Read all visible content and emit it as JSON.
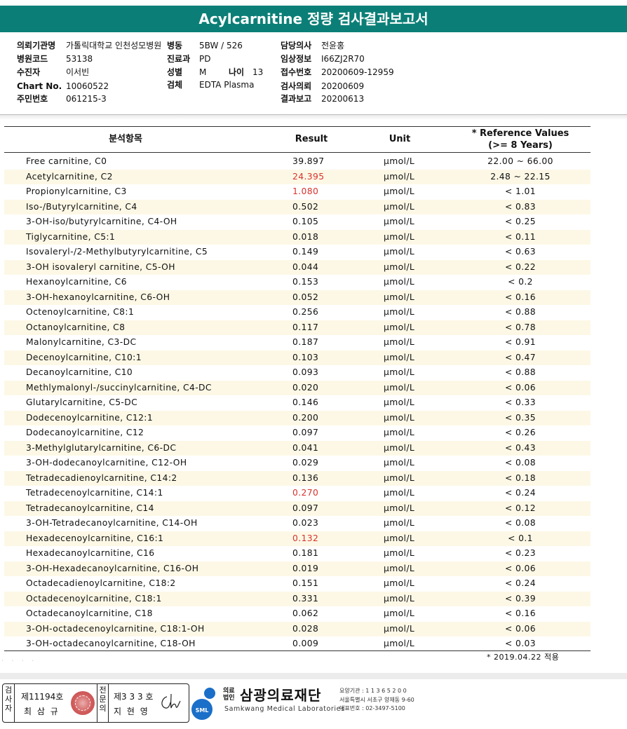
{
  "title": "Acylcarnitine 정량 검사결과보고서",
  "info": {
    "col1": [
      {
        "label": "의뢰기관명",
        "value": "가톨릭대학교 인천성모병원"
      },
      {
        "label": "병원코드",
        "value": "53138"
      },
      {
        "label": "수진자",
        "value": "이서빈"
      },
      {
        "label": "Chart No.",
        "value": "10060522"
      },
      {
        "label": "주민번호",
        "value": "061215-3"
      }
    ],
    "col2": [
      {
        "label": "병동",
        "value": "5BW / 526"
      },
      {
        "label": "진료과",
        "value": "PD"
      },
      {
        "label": "성별",
        "value": "M"
      },
      {
        "label": "검체",
        "value": "EDTA Plasma"
      }
    ],
    "age": {
      "label": "나이",
      "value": "13"
    },
    "col3": [
      {
        "label": "담당의사",
        "value": "전윤홍"
      },
      {
        "label": "임상정보",
        "value": "I66ZJ2R70"
      },
      {
        "label": "접수번호",
        "value": "20200609-12959"
      },
      {
        "label": "검사의뢰",
        "value": "20200609"
      },
      {
        "label": "결과보고",
        "value": "20200613"
      }
    ]
  },
  "table": {
    "headers": {
      "name": "분석항목",
      "result": "Result",
      "unit": "Unit",
      "ref_line1": "* Reference Values",
      "ref_line2": "(>= 8 Years)"
    },
    "rows": [
      {
        "name": "Free carnitine, C0",
        "result": "39.897",
        "unit": "μmol/L",
        "ref": "22.00 ~ 66.00",
        "flag": false
      },
      {
        "name": "Acetylcarnitine, C2",
        "result": "24.395",
        "unit": "μmol/L",
        "ref": "2.48 ~ 22.15",
        "flag": true
      },
      {
        "name": "Propionylcarnitine, C3",
        "result": "1.080",
        "unit": "μmol/L",
        "ref": "< 1.01",
        "flag": true
      },
      {
        "name": "Iso-/Butyrylcarnitine, C4",
        "result": "0.502",
        "unit": "μmol/L",
        "ref": "< 0.83",
        "flag": false
      },
      {
        "name": "3-OH-iso/butyrylcarnitine, C4-OH",
        "result": "0.105",
        "unit": "μmol/L",
        "ref": "< 0.25",
        "flag": false
      },
      {
        "name": "Tiglycarnitine, C5:1",
        "result": "0.018",
        "unit": "μmol/L",
        "ref": "< 0.11",
        "flag": false
      },
      {
        "name": "Isovaleryl-/2-Methylbutyrylcarnitine, C5",
        "result": "0.149",
        "unit": "μmol/L",
        "ref": "< 0.63",
        "flag": false
      },
      {
        "name": "3-OH isovaleryl carnitine, C5-OH",
        "result": "0.044",
        "unit": "μmol/L",
        "ref": "< 0.22",
        "flag": false
      },
      {
        "name": "Hexanoylcarnitine, C6",
        "result": "0.153",
        "unit": "μmol/L",
        "ref": "< 0.2",
        "flag": false
      },
      {
        "name": "3-OH-hexanoylcarnitine, C6-OH",
        "result": "0.052",
        "unit": "μmol/L",
        "ref": "< 0.16",
        "flag": false
      },
      {
        "name": "Octenoylcarnitine, C8:1",
        "result": "0.256",
        "unit": "μmol/L",
        "ref": "< 0.88",
        "flag": false
      },
      {
        "name": "Octanoylcarnitine, C8",
        "result": "0.117",
        "unit": "μmol/L",
        "ref": "< 0.78",
        "flag": false
      },
      {
        "name": "Malonylcarnitine, C3-DC",
        "result": "0.187",
        "unit": "μmol/L",
        "ref": "< 0.91",
        "flag": false
      },
      {
        "name": "Decenoylcarnitine, C10:1",
        "result": "0.103",
        "unit": "μmol/L",
        "ref": "< 0.47",
        "flag": false
      },
      {
        "name": "Decanoylcarnitine, C10",
        "result": "0.093",
        "unit": "μmol/L",
        "ref": "< 0.88",
        "flag": false
      },
      {
        "name": "Methlymalonyl-/succinylcarnitine, C4-DC",
        "result": "0.020",
        "unit": "μmol/L",
        "ref": "< 0.06",
        "flag": false
      },
      {
        "name": "Glutarylcarnitine, C5-DC",
        "result": "0.146",
        "unit": "μmol/L",
        "ref": "< 0.33",
        "flag": false
      },
      {
        "name": "Dodecenoylcarnitine, C12:1",
        "result": "0.200",
        "unit": "μmol/L",
        "ref": "< 0.35",
        "flag": false
      },
      {
        "name": "Dodecanoylcarnitine, C12",
        "result": "0.097",
        "unit": "μmol/L",
        "ref": "< 0.26",
        "flag": false
      },
      {
        "name": "3-Methylglutarylcarnitine, C6-DC",
        "result": "0.041",
        "unit": "μmol/L",
        "ref": "< 0.43",
        "flag": false
      },
      {
        "name": "3-OH-dodecanoylcarnitine, C12-OH",
        "result": "0.029",
        "unit": "μmol/L",
        "ref": "< 0.08",
        "flag": false
      },
      {
        "name": "Tetradecadienoylcarnitine, C14:2",
        "result": "0.136",
        "unit": "μmol/L",
        "ref": "< 0.18",
        "flag": false
      },
      {
        "name": "Tetradecenoylcarnitine, C14:1",
        "result": "0.270",
        "unit": "μmol/L",
        "ref": "< 0.24",
        "flag": true
      },
      {
        "name": "Tetradecanoylcarnitine, C14",
        "result": "0.097",
        "unit": "μmol/L",
        "ref": "< 0.12",
        "flag": false
      },
      {
        "name": "3-OH-Tetradecanoylcarnitine, C14-OH",
        "result": "0.023",
        "unit": "μmol/L",
        "ref": "< 0.08",
        "flag": false
      },
      {
        "name": "Hexadecenoylcarnitine, C16:1",
        "result": "0.132",
        "unit": "μmol/L",
        "ref": "< 0.1",
        "flag": true
      },
      {
        "name": "Hexadecanoylcarnitine, C16",
        "result": "0.181",
        "unit": "μmol/L",
        "ref": "< 0.23",
        "flag": false
      },
      {
        "name": "3-OH-Hexadecanoylcarnitine, C16-OH",
        "result": "0.019",
        "unit": "μmol/L",
        "ref": "< 0.06",
        "flag": false
      },
      {
        "name": "Octadecadienoylcarnitine, C18:2",
        "result": "0.151",
        "unit": "μmol/L",
        "ref": "< 0.24",
        "flag": false
      },
      {
        "name": "Octadecenoylcarnitine, C18:1",
        "result": "0.331",
        "unit": "μmol/L",
        "ref": "< 0.39",
        "flag": false
      },
      {
        "name": "Octadecanoylcarnitine, C18",
        "result": "0.062",
        "unit": "μmol/L",
        "ref": "< 0.16",
        "flag": false
      },
      {
        "name": "3-OH-octadecenoylcarnitine, C18:1-OH",
        "result": "0.028",
        "unit": "μmol/L",
        "ref": "< 0.06",
        "flag": false
      },
      {
        "name": "3-OH-octadecanoylcarnitine, C18-OH",
        "result": "0.009",
        "unit": "μmol/L",
        "ref": "< 0.03",
        "flag": false
      }
    ],
    "footnote": "* 2019.04.22 적용"
  },
  "signatures": {
    "inspector_label": "검사자",
    "inspector_license": "제11194호",
    "inspector_name": "최 삼 규",
    "specialist_label": "전문의",
    "specialist_license": "제3 3 3 호",
    "specialist_name": "지 현 영"
  },
  "org": {
    "small_label": "의료 법인",
    "name": "삼광의료재단",
    "english": "Samkwang Medical Laboratories",
    "logo_text": "SML",
    "code": "요양기관 : 1 1 3 6 5 2 0 0",
    "address": "서울특별시 서초구 양재동 9-60",
    "phone": "대표번호 : 02-3497-5100"
  },
  "colors": {
    "header_teal": "#0b7f77",
    "flag_red": "#d8322c",
    "alt_row": "#fdf8e6"
  }
}
